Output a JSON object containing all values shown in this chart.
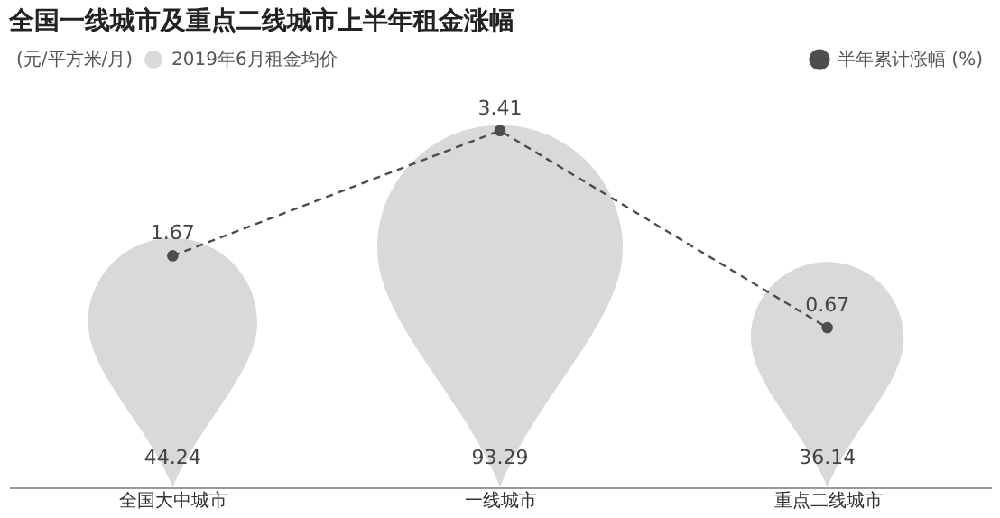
{
  "chart_data": {
    "type": "other",
    "title": "全国一线城市及重点二线城市上半年租金涨幅",
    "ylabel": "(元/平方米/月)",
    "categories": [
      "全国大中城市",
      "一线城市",
      "重点二线城市"
    ],
    "series": [
      {
        "name": "2019年6月租金均价",
        "type": "other",
        "color": "#d9d9d9",
        "values": [
          44.24,
          93.29,
          36.14
        ]
      },
      {
        "name": "半年累计涨幅 (%)",
        "type": "line",
        "color": "#4d4d4d",
        "values": [
          1.67,
          3.41,
          0.67
        ],
        "line_style": "dashed",
        "marker": "circle"
      }
    ],
    "data_labels": true,
    "legend": "top"
  }
}
